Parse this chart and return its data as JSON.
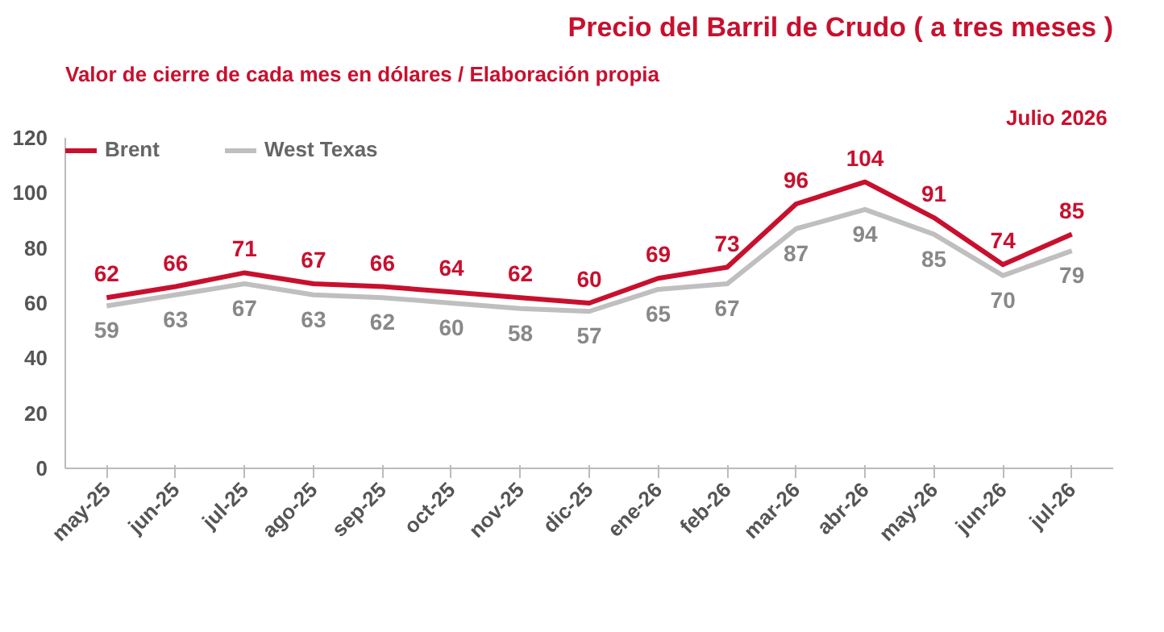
{
  "chart_data": {
    "type": "line",
    "title": "Precio del Barril de Crudo ( a tres meses )",
    "subtitle": "Valor de cierre de cada mes en dólares / Elaboración propia",
    "annotations": [
      "Julio  2026"
    ],
    "categories": [
      "may-25",
      "jun-25",
      "jul-25",
      "ago-25",
      "sep-25",
      "oct-25",
      "nov-25",
      "dic-25",
      "ene-26",
      "feb-26",
      "mar-26",
      "abr-26",
      "may-26",
      "jun-26",
      "jul-26"
    ],
    "series": [
      {
        "name": "Brent",
        "color": "#c8102e",
        "values": [
          62,
          66,
          71,
          67,
          66,
          64,
          62,
          60,
          69,
          73,
          96,
          104,
          91,
          74,
          85
        ]
      },
      {
        "name": "West Texas",
        "color": "#bfbfbf",
        "values": [
          59,
          63,
          67,
          63,
          62,
          60,
          58,
          57,
          65,
          67,
          87,
          94,
          85,
          70,
          79
        ]
      }
    ],
    "ylim": [
      0,
      120
    ],
    "yticks": [
      0,
      20,
      40,
      60,
      80,
      100,
      120
    ],
    "grid": false,
    "legend": "top left",
    "data_labels": true,
    "line_style": "solid",
    "marker": "none"
  }
}
